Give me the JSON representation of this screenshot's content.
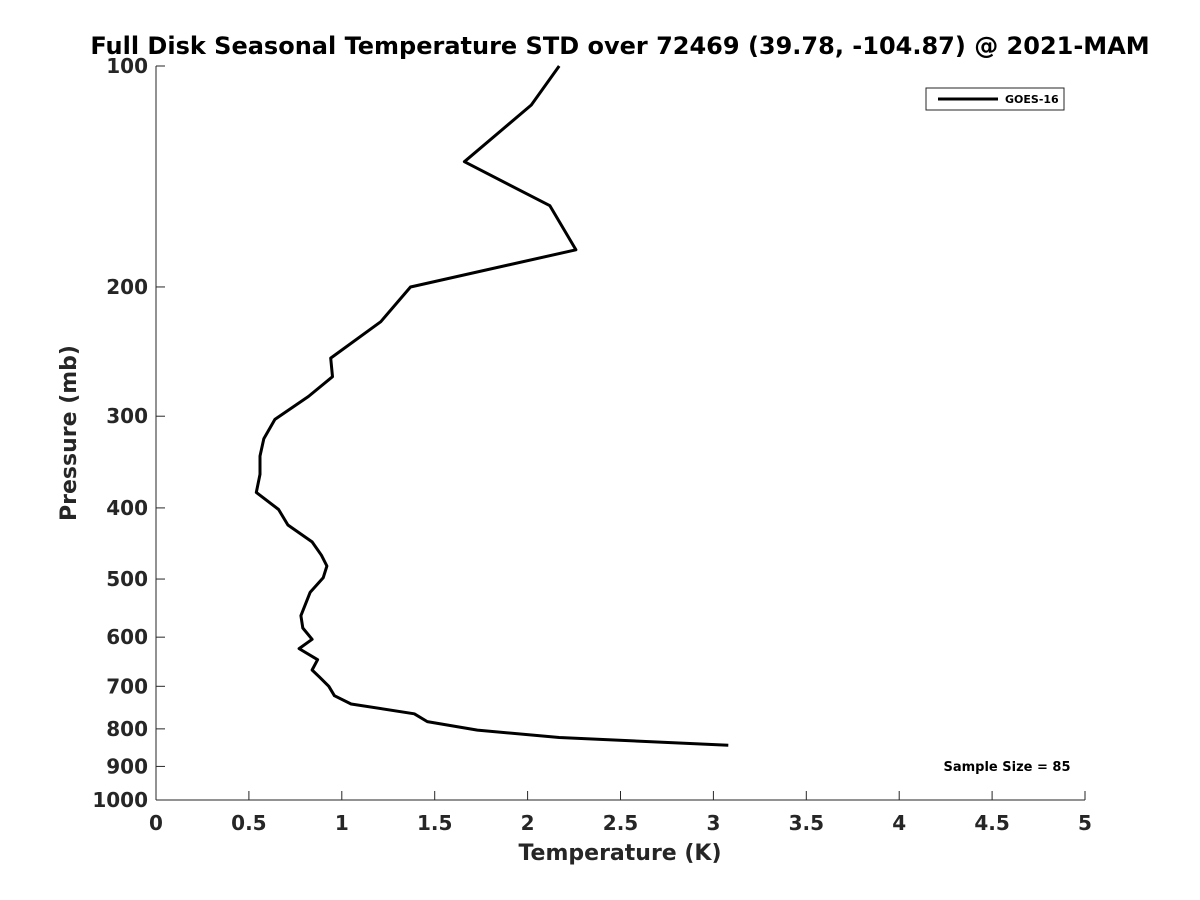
{
  "chart_data": {
    "type": "line",
    "title": "Full Disk Seasonal Temperature STD over 72469 (39.78, -104.87) @ 2021-MAM",
    "xlabel": "Temperature (K)",
    "ylabel": "Pressure (mb)",
    "xlim": [
      0,
      5
    ],
    "ylim": [
      100,
      1000
    ],
    "y_scale": "log",
    "y_reversed": true,
    "x_ticks": [
      0,
      0.5,
      1,
      1.5,
      2,
      2.5,
      3,
      3.5,
      4,
      4.5,
      5
    ],
    "x_tick_labels": [
      "0",
      "0.5",
      "1",
      "1.5",
      "2",
      "2.5",
      "3",
      "3.5",
      "4",
      "4.5",
      "5"
    ],
    "y_ticks": [
      100,
      200,
      300,
      400,
      500,
      600,
      700,
      800,
      900,
      1000
    ],
    "y_tick_labels": [
      "100",
      "200",
      "300",
      "400",
      "500",
      "600",
      "700",
      "800",
      "900",
      "1000"
    ],
    "grid": false,
    "legend_position": "top-right",
    "series": [
      {
        "name": "GOES-16",
        "color": "#000000",
        "x": [
          2.17,
          2.02,
          1.66,
          2.12,
          2.26,
          1.37,
          1.21,
          0.94,
          0.95,
          0.82,
          0.64,
          0.58,
          0.56,
          0.56,
          0.54,
          0.66,
          0.71,
          0.84,
          0.89,
          0.92,
          0.9,
          0.83,
          0.78,
          0.79,
          0.84,
          0.77,
          0.87,
          0.84,
          0.88,
          0.93,
          0.96,
          1.05,
          1.39,
          1.46,
          1.73,
          2.17,
          3.08
        ],
        "y": [
          100,
          113,
          135,
          155,
          178,
          200,
          223,
          250,
          265,
          282,
          303,
          322,
          340,
          360,
          381,
          402,
          422,
          445,
          464,
          480,
          498,
          521,
          561,
          583,
          604,
          622,
          644,
          665,
          680,
          700,
          721,
          740,
          763,
          782,
          803,
          822,
          842
        ]
      }
    ],
    "annotations": [
      "Sample Size = 85"
    ]
  }
}
